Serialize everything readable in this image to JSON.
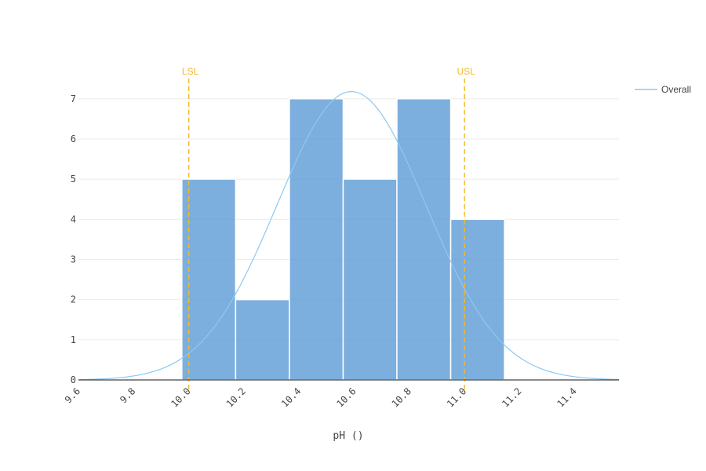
{
  "chart_data": {
    "type": "bar",
    "subtype": "histogram",
    "xlabel": "pH ()",
    "ylabel": "",
    "xlim": [
      9.6,
      11.56
    ],
    "ylim": [
      0,
      7.7
    ],
    "x_ticks": [
      "9.6",
      "9.8",
      "10.0",
      "10.2",
      "10.4",
      "10.6",
      "10.8",
      "11.0",
      "11.2",
      "11.4"
    ],
    "y_ticks": [
      "0",
      "1",
      "2",
      "3",
      "4",
      "5",
      "6",
      "7"
    ],
    "bins": [
      {
        "start": 9.975,
        "end": 10.17,
        "count": 5
      },
      {
        "start": 10.17,
        "end": 10.365,
        "count": 2
      },
      {
        "start": 10.365,
        "end": 10.56,
        "count": 7
      },
      {
        "start": 10.56,
        "end": 10.755,
        "count": 5
      },
      {
        "start": 10.755,
        "end": 10.95,
        "count": 7
      },
      {
        "start": 10.95,
        "end": 11.145,
        "count": 4
      }
    ],
    "spec_limits": [
      {
        "label": "LSL",
        "value": 10.0
      },
      {
        "label": "USL",
        "value": 11.0
      }
    ],
    "series": [
      {
        "name": "Overall",
        "type": "normal-curve",
        "mean": 10.59,
        "sd": 0.27,
        "peak": 7.18
      }
    ],
    "legend_position": "top-right",
    "grid": true,
    "colors": {
      "bar": "#5b9bd5",
      "bar_edge": "#ffffff",
      "curve": "#8ec9ef",
      "spec": "#f5b829",
      "grid": "#ebebeb",
      "axis": "#444444"
    }
  }
}
